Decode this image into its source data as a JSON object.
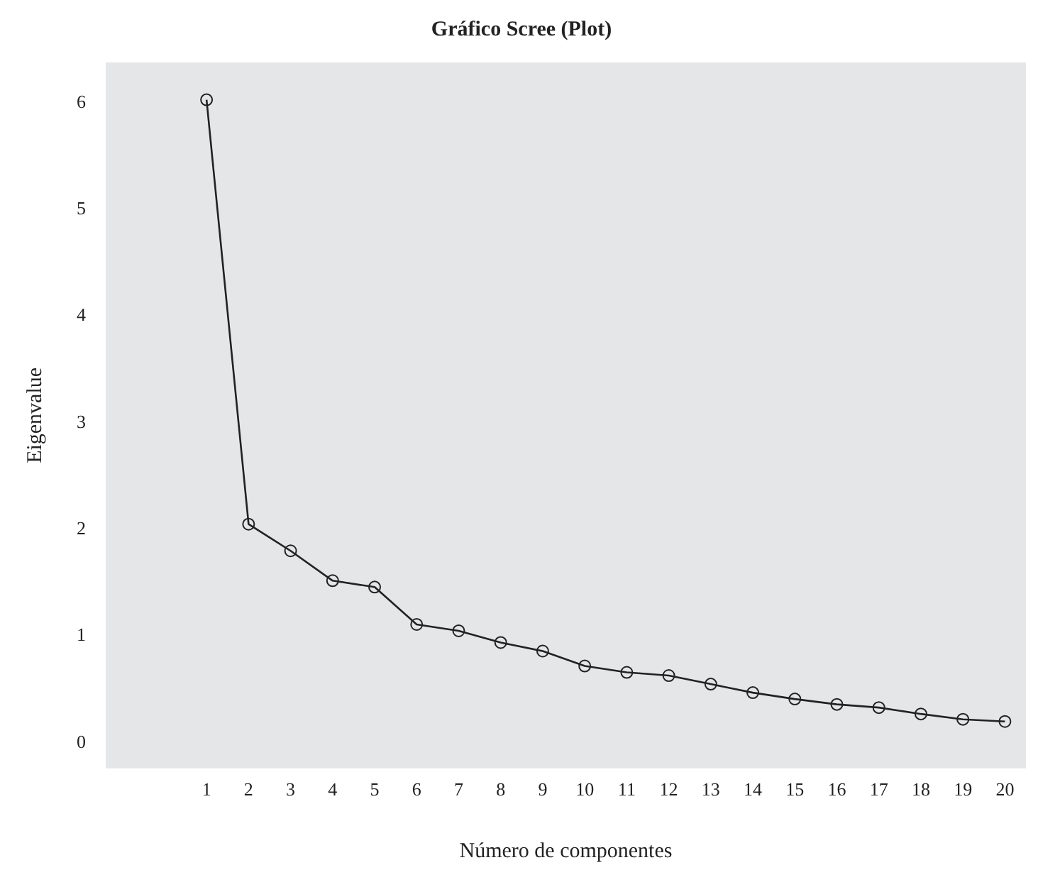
{
  "chart_data": {
    "type": "line",
    "title": "Gráfico Scree (Plot)",
    "xlabel": "Número de componentes",
    "ylabel": "Eigenvalue",
    "x": [
      1,
      2,
      3,
      4,
      5,
      6,
      7,
      8,
      9,
      10,
      11,
      12,
      13,
      14,
      15,
      16,
      17,
      18,
      19,
      20
    ],
    "series": [
      {
        "color": "#222222",
        "values": [
          6.03,
          2.05,
          1.8,
          1.52,
          1.46,
          1.11,
          1.05,
          0.94,
          0.86,
          0.72,
          0.66,
          0.63,
          0.55,
          0.47,
          0.41,
          0.36,
          0.33,
          0.27,
          0.22,
          0.2
        ]
      }
    ],
    "xlim": [
      -1.4,
      20.5
    ],
    "xticks": [
      1,
      2,
      3,
      4,
      5,
      6,
      7,
      8,
      9,
      10,
      11,
      12,
      13,
      14,
      15,
      16,
      17,
      18,
      19,
      20
    ],
    "ylim": [
      -0.24,
      6.38
    ],
    "yticks": [
      0,
      1,
      2,
      3,
      4,
      5,
      6
    ],
    "grid": false,
    "legend": false,
    "marker": "circle",
    "line_style": "solid"
  }
}
